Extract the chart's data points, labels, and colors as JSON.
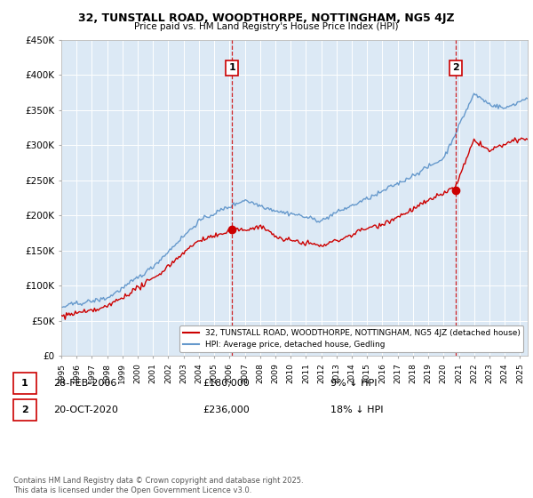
{
  "title1": "32, TUNSTALL ROAD, WOODTHORPE, NOTTINGHAM, NG5 4JZ",
  "title2": "Price paid vs. HM Land Registry's House Price Index (HPI)",
  "ylabel_ticks": [
    "£0",
    "£50K",
    "£100K",
    "£150K",
    "£200K",
    "£250K",
    "£300K",
    "£350K",
    "£400K",
    "£450K"
  ],
  "ytick_values": [
    0,
    50000,
    100000,
    150000,
    200000,
    250000,
    300000,
    350000,
    400000,
    450000
  ],
  "xlim_start": 1995.0,
  "xlim_end": 2025.5,
  "ylim": [
    0,
    450000
  ],
  "legend1": "32, TUNSTALL ROAD, WOODTHORPE, NOTTINGHAM, NG5 4JZ (detached house)",
  "legend2": "HPI: Average price, detached house, Gedling",
  "marker1_label": "1",
  "marker1_date": "28-FEB-2006",
  "marker1_price": 180000,
  "marker1_pct": "9% ↓ HPI",
  "marker1_x": 2006.17,
  "marker2_label": "2",
  "marker2_date": "20-OCT-2020",
  "marker2_price": 236000,
  "marker2_pct": "18% ↓ HPI",
  "marker2_x": 2020.8,
  "line_color_property": "#cc0000",
  "line_color_hpi": "#6699cc",
  "dashed_vline_color": "#cc0000",
  "footer": "Contains HM Land Registry data © Crown copyright and database right 2025.\nThis data is licensed under the Open Government Licence v3.0.",
  "background_color": "#ffffff",
  "plot_bg_color": "#dce9f5",
  "grid_color": "#ffffff"
}
